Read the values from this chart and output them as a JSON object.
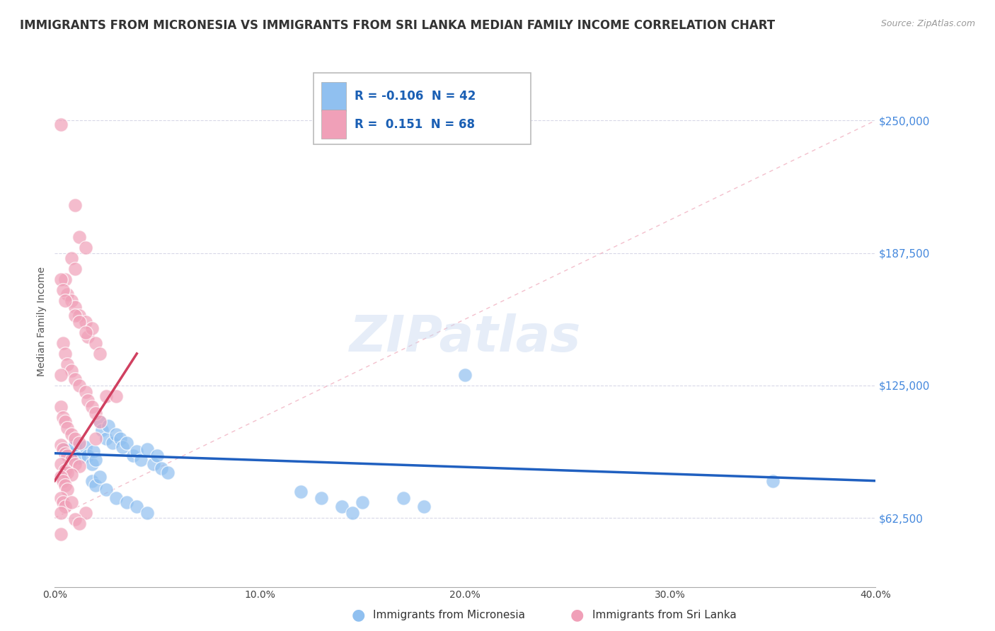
{
  "title": "IMMIGRANTS FROM MICRONESIA VS IMMIGRANTS FROM SRI LANKA MEDIAN FAMILY INCOME CORRELATION CHART",
  "source": "Source: ZipAtlas.com",
  "ylabel": "Median Family Income",
  "xlim": [
    0.0,
    0.4
  ],
  "ylim": [
    30000,
    280000
  ],
  "yticks": [
    62500,
    125000,
    187500,
    250000
  ],
  "ytick_labels": [
    "$62,500",
    "$125,000",
    "$187,500",
    "$250,000"
  ],
  "xtick_labels": [
    "0.0%",
    "",
    "10.0%",
    "",
    "20.0%",
    "",
    "30.0%",
    "",
    "40.0%"
  ],
  "xticks": [
    0.0,
    0.05,
    0.1,
    0.15,
    0.2,
    0.25,
    0.3,
    0.35,
    0.4
  ],
  "blue_scatter": [
    [
      0.005,
      95000
    ],
    [
      0.008,
      93000
    ],
    [
      0.01,
      97000
    ],
    [
      0.012,
      91000
    ],
    [
      0.015,
      96000
    ],
    [
      0.016,
      92000
    ],
    [
      0.018,
      88000
    ],
    [
      0.019,
      94000
    ],
    [
      0.02,
      90000
    ],
    [
      0.022,
      108000
    ],
    [
      0.023,
      104000
    ],
    [
      0.025,
      100000
    ],
    [
      0.026,
      106000
    ],
    [
      0.028,
      98000
    ],
    [
      0.03,
      102000
    ],
    [
      0.032,
      100000
    ],
    [
      0.033,
      96000
    ],
    [
      0.035,
      98000
    ],
    [
      0.038,
      92000
    ],
    [
      0.04,
      94000
    ],
    [
      0.042,
      90000
    ],
    [
      0.045,
      95000
    ],
    [
      0.048,
      88000
    ],
    [
      0.05,
      92000
    ],
    [
      0.052,
      86000
    ],
    [
      0.055,
      84000
    ],
    [
      0.018,
      80000
    ],
    [
      0.02,
      78000
    ],
    [
      0.022,
      82000
    ],
    [
      0.025,
      76000
    ],
    [
      0.03,
      72000
    ],
    [
      0.035,
      70000
    ],
    [
      0.04,
      68000
    ],
    [
      0.045,
      65000
    ],
    [
      0.12,
      75000
    ],
    [
      0.13,
      72000
    ],
    [
      0.14,
      68000
    ],
    [
      0.145,
      65000
    ],
    [
      0.15,
      70000
    ],
    [
      0.17,
      72000
    ],
    [
      0.18,
      68000
    ],
    [
      0.2,
      130000
    ],
    [
      0.35,
      80000
    ]
  ],
  "pink_scatter": [
    [
      0.003,
      248000
    ],
    [
      0.01,
      210000
    ],
    [
      0.012,
      195000
    ],
    [
      0.008,
      185000
    ],
    [
      0.015,
      190000
    ],
    [
      0.01,
      180000
    ],
    [
      0.005,
      175000
    ],
    [
      0.006,
      168000
    ],
    [
      0.008,
      165000
    ],
    [
      0.01,
      162000
    ],
    [
      0.012,
      158000
    ],
    [
      0.015,
      155000
    ],
    [
      0.016,
      148000
    ],
    [
      0.018,
      152000
    ],
    [
      0.02,
      145000
    ],
    [
      0.022,
      140000
    ],
    [
      0.004,
      145000
    ],
    [
      0.005,
      140000
    ],
    [
      0.006,
      135000
    ],
    [
      0.008,
      132000
    ],
    [
      0.01,
      128000
    ],
    [
      0.012,
      125000
    ],
    [
      0.015,
      122000
    ],
    [
      0.016,
      118000
    ],
    [
      0.018,
      115000
    ],
    [
      0.02,
      112000
    ],
    [
      0.022,
      108000
    ],
    [
      0.025,
      120000
    ],
    [
      0.003,
      115000
    ],
    [
      0.004,
      110000
    ],
    [
      0.005,
      108000
    ],
    [
      0.006,
      105000
    ],
    [
      0.008,
      102000
    ],
    [
      0.01,
      100000
    ],
    [
      0.012,
      98000
    ],
    [
      0.003,
      97000
    ],
    [
      0.004,
      95000
    ],
    [
      0.005,
      93000
    ],
    [
      0.006,
      92000
    ],
    [
      0.008,
      90000
    ],
    [
      0.01,
      88000
    ],
    [
      0.012,
      87000
    ],
    [
      0.003,
      88000
    ],
    [
      0.005,
      85000
    ],
    [
      0.006,
      84000
    ],
    [
      0.008,
      83000
    ],
    [
      0.003,
      82000
    ],
    [
      0.004,
      80000
    ],
    [
      0.005,
      78000
    ],
    [
      0.006,
      76000
    ],
    [
      0.003,
      72000
    ],
    [
      0.004,
      70000
    ],
    [
      0.005,
      68000
    ],
    [
      0.003,
      65000
    ],
    [
      0.03,
      120000
    ],
    [
      0.003,
      175000
    ],
    [
      0.004,
      170000
    ],
    [
      0.005,
      165000
    ],
    [
      0.01,
      158000
    ],
    [
      0.012,
      155000
    ],
    [
      0.015,
      150000
    ],
    [
      0.003,
      130000
    ],
    [
      0.02,
      100000
    ],
    [
      0.008,
      70000
    ],
    [
      0.015,
      65000
    ],
    [
      0.01,
      62000
    ],
    [
      0.012,
      60000
    ],
    [
      0.003,
      55000
    ]
  ],
  "blue_line_x": [
    0.0,
    0.4
  ],
  "blue_line_y": [
    93000,
    80000
  ],
  "pink_line_x": [
    0.0,
    0.04
  ],
  "pink_line_y": [
    80000,
    140000
  ],
  "ref_line_x": [
    0.0,
    0.4
  ],
  "ref_line_y": [
    62500,
    250000
  ],
  "scatter_size": 200,
  "blue_color": "#90c0f0",
  "pink_color": "#f0a0b8",
  "blue_line_color": "#2060c0",
  "pink_line_color": "#d04060",
  "ref_line_color": "#d0d0d0",
  "grid_color": "#d8d8e8",
  "title_fontsize": 12,
  "axis_label_fontsize": 10,
  "tick_fontsize": 10,
  "ytick_color": "#4488dd",
  "xtick_color": "#444444",
  "legend_R_color": "#1a5fb4",
  "watermark": "ZIPatlas"
}
